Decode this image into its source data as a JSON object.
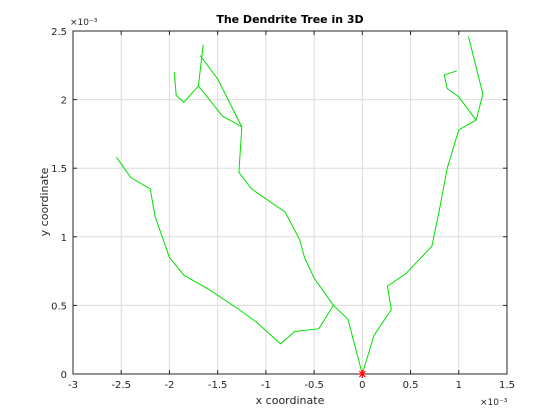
{
  "chart_data": {
    "type": "line",
    "title": "The Dendrite Tree in 3D",
    "xlabel": "x coordinate",
    "ylabel": "y coordinate",
    "xlim": [
      -3,
      1.5
    ],
    "ylim": [
      0,
      2.5
    ],
    "x_ticks": [
      "-3",
      "-2.5",
      "-2",
      "-1.5",
      "-1",
      "-0.5",
      "0",
      "0.5",
      "1",
      "1.5"
    ],
    "y_ticks": [
      "0",
      "0.5",
      "1",
      "1.5",
      "2",
      "2.5"
    ],
    "x_exponent": "×10⁻³",
    "y_exponent": "×10⁻³",
    "grid": true,
    "line_color": "#00e000",
    "marker_color": "#ff0000",
    "origin_marker": [
      0,
      0
    ],
    "series": [
      {
        "points": [
          [
            0,
            0
          ],
          [
            -0.15,
            0.4
          ],
          [
            -0.3,
            0.5
          ],
          [
            -0.45,
            0.33
          ],
          [
            -0.7,
            0.31
          ],
          [
            -0.85,
            0.22
          ],
          [
            -1.1,
            0.38
          ],
          [
            -1.3,
            0.48
          ],
          [
            -1.6,
            0.62
          ],
          [
            -1.85,
            0.72
          ],
          [
            -2.0,
            0.85
          ],
          [
            -2.15,
            1.15
          ],
          [
            -2.2,
            1.35
          ],
          [
            -2.4,
            1.43
          ],
          [
            -2.55,
            1.58
          ]
        ]
      },
      {
        "points": [
          [
            -0.3,
            0.5
          ],
          [
            -0.5,
            0.7
          ],
          [
            -0.6,
            0.85
          ],
          [
            -0.65,
            0.98
          ],
          [
            -0.8,
            1.18
          ],
          [
            -1.15,
            1.35
          ],
          [
            -1.28,
            1.47
          ],
          [
            -1.25,
            1.8
          ],
          [
            -1.45,
            1.88
          ],
          [
            -1.7,
            2.1
          ],
          [
            -1.65,
            2.4
          ]
        ]
      },
      {
        "points": [
          [
            -1.25,
            1.8
          ],
          [
            -1.5,
            2.15
          ],
          [
            -1.68,
            2.32
          ]
        ]
      },
      {
        "points": [
          [
            -1.7,
            2.1
          ],
          [
            -1.85,
            1.98
          ],
          [
            -1.93,
            2.03
          ],
          [
            -1.95,
            2.2
          ]
        ]
      },
      {
        "points": [
          [
            0,
            0
          ],
          [
            0.12,
            0.28
          ],
          [
            0.3,
            0.47
          ],
          [
            0.26,
            0.64
          ],
          [
            0.45,
            0.73
          ],
          [
            0.72,
            0.93
          ],
          [
            0.8,
            1.2
          ],
          [
            0.88,
            1.5
          ],
          [
            1.0,
            1.78
          ],
          [
            1.18,
            1.85
          ],
          [
            1.25,
            2.04
          ],
          [
            1.1,
            2.46
          ]
        ]
      },
      {
        "points": [
          [
            1.18,
            1.85
          ],
          [
            1.0,
            2.02
          ],
          [
            0.88,
            2.08
          ],
          [
            0.85,
            2.18
          ],
          [
            0.98,
            2.21
          ]
        ]
      }
    ]
  }
}
